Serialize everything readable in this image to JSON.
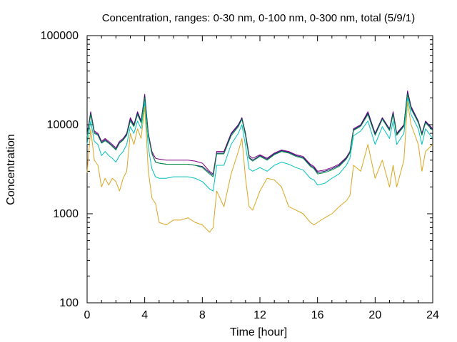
{
  "chart_data": {
    "type": "line",
    "title": "Concentration, ranges: 0-30 nm, 0-100 nm, 0-300 nm, total (5/9/1)",
    "xlabel": "Time [hour]",
    "ylabel": "Concentration",
    "xlim": [
      0,
      24
    ],
    "ylim": [
      100,
      100000
    ],
    "yscale": "log",
    "x_ticks": [
      "0",
      "4",
      "8",
      "12",
      "16",
      "20",
      "24"
    ],
    "y_ticks": [
      "100",
      "1000",
      "10000",
      "100000"
    ],
    "grid": false,
    "legend": "none",
    "x": [
      0,
      0.25,
      0.5,
      0.75,
      1,
      1.25,
      1.5,
      1.75,
      2,
      2.25,
      2.5,
      2.75,
      3,
      3.25,
      3.5,
      3.75,
      4,
      4.25,
      4.5,
      4.75,
      5,
      5.5,
      6,
      6.5,
      7,
      7.5,
      8,
      8.5,
      8.75,
      9,
      9.5,
      10,
      10.5,
      10.75,
      11,
      11.25,
      11.5,
      12,
      12.5,
      13,
      13.5,
      14,
      14.5,
      15,
      15.5,
      15.75,
      16,
      16.5,
      17,
      17.5,
      18,
      18.25,
      18.5,
      19,
      19.5,
      20,
      20.5,
      21,
      21.25,
      21.5,
      22,
      22.25,
      22.5,
      23,
      23.25,
      23.5,
      24
    ],
    "series": [
      {
        "color": "#800080",
        "values": [
          7800,
          14000,
          8500,
          8000,
          6500,
          7000,
          6500,
          6000,
          5500,
          6500,
          7000,
          8000,
          12000,
          10000,
          14000,
          11000,
          22000,
          8000,
          5000,
          4200,
          4100,
          4000,
          4000,
          4000,
          4000,
          3900,
          3700,
          3000,
          2800,
          5000,
          5000,
          8000,
          10000,
          12000,
          8000,
          4500,
          4200,
          4600,
          4200,
          4800,
          5200,
          5000,
          4600,
          4400,
          3600,
          3400,
          3000,
          3100,
          3300,
          3600,
          4300,
          5000,
          9000,
          10000,
          14000,
          8000,
          12000,
          9000,
          14000,
          8000,
          10000,
          24000,
          16000,
          11000,
          8000,
          11000,
          9000
        ]
      },
      {
        "color": "#191970",
        "values": [
          7500,
          13500,
          8200,
          7800,
          6300,
          6800,
          6300,
          5800,
          5300,
          6300,
          6800,
          7800,
          11500,
          9800,
          13500,
          10800,
          21000,
          7800,
          4800,
          3800,
          3700,
          3600,
          3600,
          3600,
          3600,
          3500,
          3400,
          2900,
          2700,
          4800,
          4800,
          7800,
          9800,
          11800,
          7800,
          4300,
          4000,
          4500,
          4100,
          4700,
          5100,
          4900,
          4500,
          4300,
          3500,
          3300,
          2900,
          3000,
          3200,
          3500,
          4200,
          4900,
          8800,
          9800,
          13500,
          7800,
          11800,
          8800,
          13500,
          7800,
          9800,
          23000,
          15500,
          10800,
          7800,
          10800,
          8800
        ]
      },
      {
        "color": "#008b45",
        "values": [
          7400,
          13000,
          8000,
          7600,
          6200,
          6600,
          6200,
          5700,
          5200,
          6200,
          6700,
          7600,
          11000,
          9500,
          13000,
          10500,
          20000,
          7500,
          4700,
          3800,
          3700,
          3600,
          3600,
          3600,
          3600,
          3500,
          3300,
          2800,
          2600,
          4700,
          4700,
          7500,
          9500,
          11500,
          7500,
          4200,
          3900,
          4400,
          4000,
          4600,
          5000,
          4800,
          4400,
          4200,
          3400,
          3200,
          2800,
          2900,
          3100,
          3400,
          4100,
          4800,
          8600,
          9600,
          13000,
          7600,
          11500,
          8600,
          13000,
          7600,
          9600,
          22000,
          15000,
          10500,
          7600,
          10500,
          8600
        ]
      },
      {
        "color": "#00bfbf",
        "values": [
          6000,
          11000,
          6500,
          6000,
          4500,
          5000,
          4500,
          4200,
          3800,
          4500,
          5000,
          6000,
          9500,
          8000,
          11000,
          9000,
          18000,
          5500,
          3200,
          2600,
          2500,
          2500,
          2600,
          2600,
          2600,
          2500,
          2300,
          1900,
          1800,
          3500,
          3500,
          6000,
          8000,
          10000,
          5800,
          3200,
          3000,
          3300,
          3000,
          3500,
          3800,
          3600,
          3300,
          3100,
          2500,
          2400,
          2100,
          2200,
          2500,
          2800,
          3500,
          4200,
          7500,
          8500,
          11000,
          6000,
          9500,
          7000,
          11000,
          6000,
          8000,
          20000,
          13000,
          9000,
          6000,
          9000,
          7000
        ]
      },
      {
        "color": "#daa520",
        "values": [
          2900,
          9000,
          4000,
          3500,
          2000,
          2500,
          2100,
          2500,
          2300,
          1800,
          2500,
          3000,
          8000,
          6000,
          9000,
          7000,
          16000,
          3000,
          1500,
          1300,
          800,
          750,
          850,
          850,
          900,
          800,
          750,
          620,
          700,
          1800,
          1200,
          2800,
          5000,
          7000,
          2500,
          1200,
          1100,
          1800,
          2500,
          2400,
          2000,
          1200,
          1100,
          1000,
          800,
          750,
          800,
          900,
          1000,
          1200,
          1400,
          1600,
          3500,
          3000,
          6000,
          2500,
          4000,
          2000,
          3500,
          2000,
          4000,
          18000,
          10000,
          6000,
          3000,
          5000,
          6000
        ]
      }
    ]
  }
}
